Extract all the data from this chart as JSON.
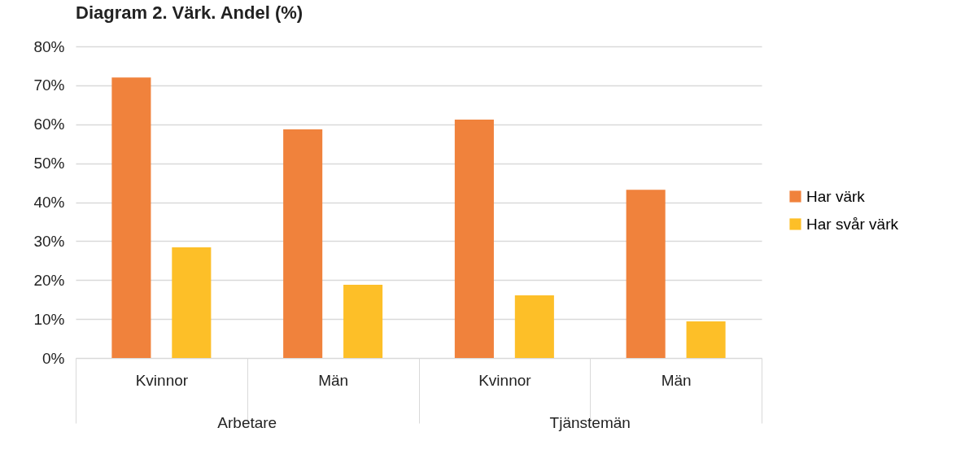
{
  "chart_data": {
    "type": "bar",
    "title": "Diagram 2. Värk. Andel (%)",
    "categories": [
      "Kvinnor",
      "Män",
      "Kvinnor",
      "Män"
    ],
    "series": [
      {
        "name": "Har värk",
        "color": "#f0823c",
        "values": [
          72.0,
          58.7,
          61.2,
          43.2
        ]
      },
      {
        "name": "Har svår värk",
        "color": "#fdbf28",
        "values": [
          28.4,
          18.8,
          16.1,
          9.4
        ]
      }
    ],
    "ylim": [
      0,
      80
    ],
    "yticks": [
      {
        "value": 0,
        "label": "0%"
      },
      {
        "value": 10,
        "label": "10%"
      },
      {
        "value": 20,
        "label": "20%"
      },
      {
        "value": 30,
        "label": "30%"
      },
      {
        "value": 40,
        "label": "40%"
      },
      {
        "value": 50,
        "label": "50%"
      },
      {
        "value": 60,
        "label": "60%"
      },
      {
        "value": 70,
        "label": "70%"
      },
      {
        "value": 80,
        "label": "80%"
      }
    ],
    "grid": "y",
    "legend": "right",
    "annotations": [
      "Arbetare",
      "Tjänstemän"
    ]
  }
}
